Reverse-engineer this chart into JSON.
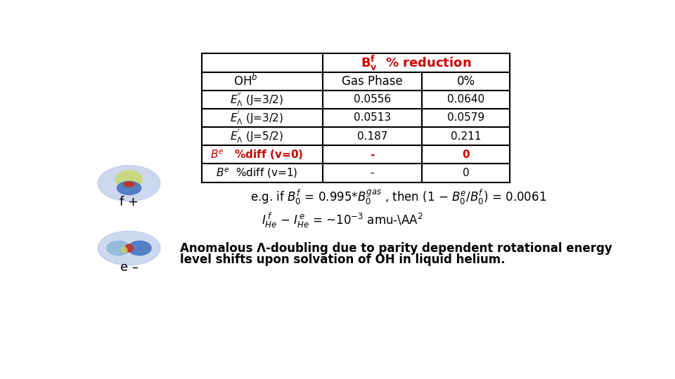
{
  "bg_color": "#ffffff",
  "header_color": "#cc0000",
  "fp_label": "f +",
  "em_label": "e –",
  "footnote_line1": "Anomalous Λ-doubling due to parity dependent rotational energy",
  "footnote_line2": "level shifts upon solvation of OH in liquid helium."
}
